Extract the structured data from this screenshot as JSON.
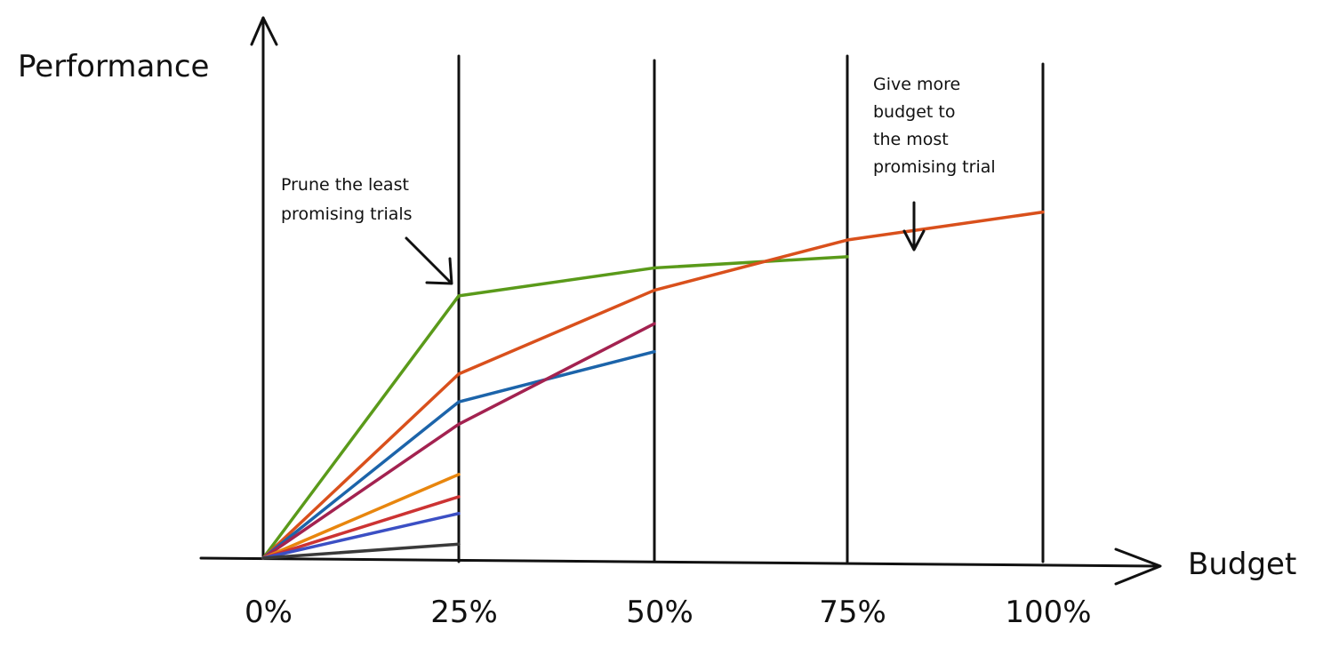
{
  "chart_data": {
    "type": "line",
    "title": "",
    "xlabel": "Budget",
    "ylabel": "Performance",
    "x": [
      0,
      25,
      50,
      75,
      100
    ],
    "x_tick_labels": [
      "0%",
      "25%",
      "50%",
      "75%",
      "100%"
    ],
    "xlim": [
      0,
      100
    ],
    "ylim": [
      0,
      100
    ],
    "grid": "vertical lines at each budget mark",
    "legend": "none",
    "series": [
      {
        "color": "#5a9a1a",
        "x": [
          0,
          25,
          50,
          75
        ],
        "y": [
          0,
          47,
          52,
          54
        ]
      },
      {
        "color": "#d9501c",
        "x": [
          0,
          25,
          50,
          75,
          100
        ],
        "y": [
          0,
          33,
          48,
          57,
          62
        ]
      },
      {
        "color": "#1c64aa",
        "x": [
          0,
          25,
          50
        ],
        "y": [
          0,
          28,
          37
        ]
      },
      {
        "color": "#a32250",
        "x": [
          0,
          25,
          50
        ],
        "y": [
          0,
          24,
          42
        ]
      },
      {
        "color": "#e8860e",
        "x": [
          0,
          25
        ],
        "y": [
          0,
          15
        ]
      },
      {
        "color": "#cc3333",
        "x": [
          0,
          25
        ],
        "y": [
          0,
          11
        ]
      },
      {
        "color": "#3b4fc4",
        "x": [
          0,
          25
        ],
        "y": [
          0,
          8
        ]
      },
      {
        "color": "#3a3a3a",
        "x": [
          0,
          25
        ],
        "y": [
          0,
          2.5
        ]
      }
    ],
    "annotations": {
      "prune": [
        "Prune the least",
        "promising trials"
      ],
      "give": [
        "Give more",
        "budget to",
        "the most",
        "promising trial"
      ]
    }
  }
}
